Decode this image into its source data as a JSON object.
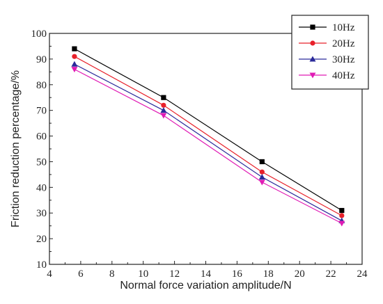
{
  "chart_data": {
    "type": "line",
    "title": "",
    "xlabel": "Normal force variation amplitude/N",
    "ylabel": "Friction reduction percentage/%",
    "xlim": [
      4,
      24
    ],
    "ylim": [
      10,
      100
    ],
    "xticks": [
      4,
      6,
      8,
      10,
      12,
      14,
      16,
      18,
      20,
      22,
      24
    ],
    "yticks": [
      10,
      20,
      30,
      40,
      50,
      60,
      70,
      80,
      90,
      100
    ],
    "grid": false,
    "legend_position": "top-right",
    "x": [
      5.6,
      11.3,
      17.6,
      22.7
    ],
    "series": [
      {
        "name": "10Hz",
        "values": [
          94,
          75,
          50,
          31
        ],
        "color": "#000000",
        "marker": "square"
      },
      {
        "name": "20Hz",
        "values": [
          91,
          72,
          46,
          29
        ],
        "color": "#e8202a",
        "marker": "circle"
      },
      {
        "name": "30Hz",
        "values": [
          88,
          70,
          44,
          27
        ],
        "color": "#2a2a9a",
        "marker": "triangle-up"
      },
      {
        "name": "40Hz",
        "values": [
          86,
          68,
          42,
          26
        ],
        "color": "#e01bb5",
        "marker": "triangle-down"
      }
    ]
  }
}
